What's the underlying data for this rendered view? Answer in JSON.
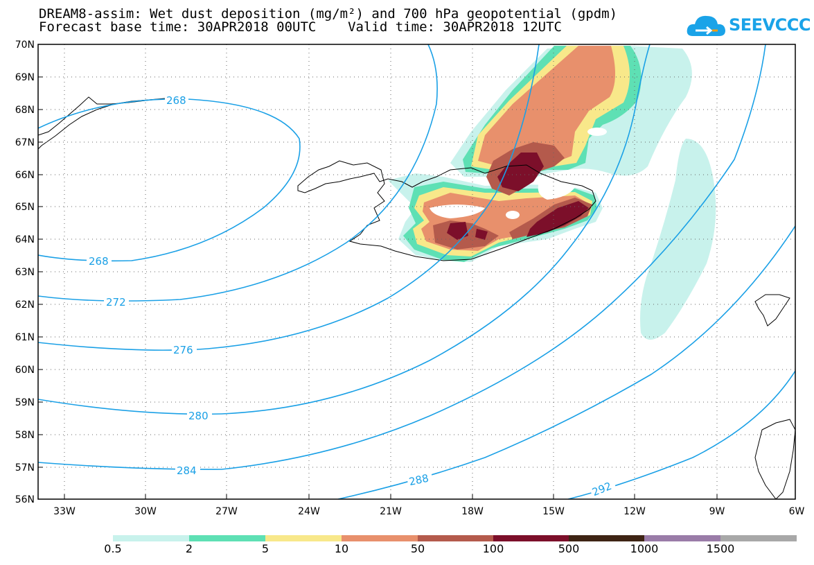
{
  "header": {
    "title_line1": "DREAM8-assim: Wet dust deposition (mg/m²) and 700 hPa geopotential (gpdm)",
    "title_line2": "Forecast base time: 30APR2018 00UTC    Valid time: 30APR2018 12UTC"
  },
  "logo": {
    "text": "SEEVCCC",
    "icon": "cloud-icon",
    "color": "#1aa3e8"
  },
  "map": {
    "lat_labels": [
      "70N",
      "69N",
      "68N",
      "67N",
      "66N",
      "65N",
      "64N",
      "63N",
      "62N",
      "61N",
      "60N",
      "59N",
      "58N",
      "57N",
      "56N"
    ],
    "lon_labels": [
      "33W",
      "30W",
      "27W",
      "24W",
      "21W",
      "18W",
      "15W",
      "12W",
      "9W",
      "6W"
    ],
    "contour_color": "#1aa0e6",
    "contour_labels": [
      "268",
      "268",
      "272",
      "276",
      "280",
      "284",
      "288",
      "292"
    ]
  },
  "colorbar": {
    "colors": [
      "#c8f2ec",
      "#5ee0b4",
      "#f8e88a",
      "#e8906c",
      "#b45a4c",
      "#7c0f2a",
      "#3e2414",
      "#9a7ca8",
      "#a8a8a8"
    ],
    "labels": [
      "0.5",
      "2",
      "5",
      "10",
      "50",
      "100",
      "500",
      "1000",
      "1500"
    ]
  }
}
